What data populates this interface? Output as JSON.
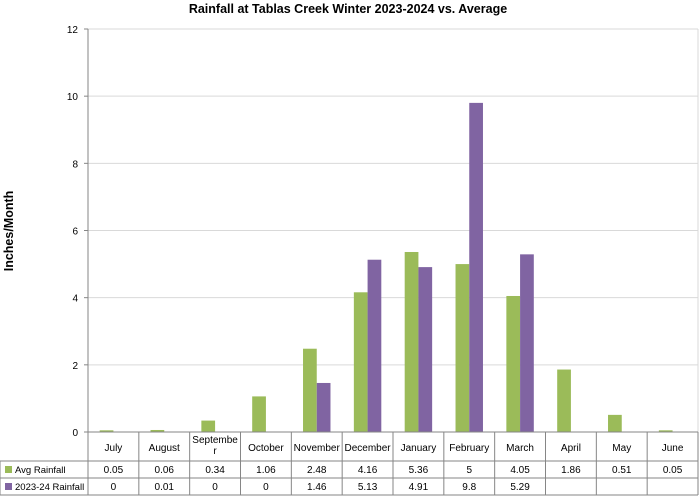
{
  "chart_data": {
    "type": "bar",
    "title": "Rainfall at Tablas Creek Winter 2023-2024 vs. Average",
    "xlabel": "",
    "ylabel": "Inches/Month",
    "ylim": [
      0,
      12
    ],
    "yticks": [
      0,
      2,
      4,
      6,
      8,
      10,
      12
    ],
    "grid": true,
    "legend": "data-table",
    "categories": [
      "July",
      "August",
      "September",
      "October",
      "November",
      "December",
      "January",
      "February",
      "March",
      "April",
      "May",
      "June"
    ],
    "category_labels": [
      [
        "July"
      ],
      [
        "August"
      ],
      [
        "Septembe",
        "r"
      ],
      [
        "October"
      ],
      [
        "November"
      ],
      [
        "December"
      ],
      [
        "January"
      ],
      [
        "February"
      ],
      [
        "March"
      ],
      [
        "April"
      ],
      [
        "May"
      ],
      [
        "June"
      ]
    ],
    "series": [
      {
        "name": "Avg Rainfall",
        "color": "#9bbb59",
        "values": [
          0.05,
          0.06,
          0.34,
          1.06,
          2.48,
          4.16,
          5.36,
          5,
          4.05,
          1.86,
          0.51,
          0.05
        ],
        "table": [
          "0.05",
          "0.06",
          "0.34",
          "1.06",
          "2.48",
          "4.16",
          "5.36",
          "5",
          "4.05",
          "1.86",
          "0.51",
          "0.05"
        ]
      },
      {
        "name": "2023-24 Rainfall",
        "color": "#8064a2",
        "values": [
          0,
          0.01,
          0,
          0,
          1.46,
          5.13,
          4.91,
          9.8,
          5.29,
          null,
          null,
          null
        ],
        "table": [
          "0",
          "0.01",
          "0",
          "0",
          "1.46",
          "5.13",
          "4.91",
          "9.8",
          "5.29",
          "",
          "",
          ""
        ]
      }
    ]
  }
}
